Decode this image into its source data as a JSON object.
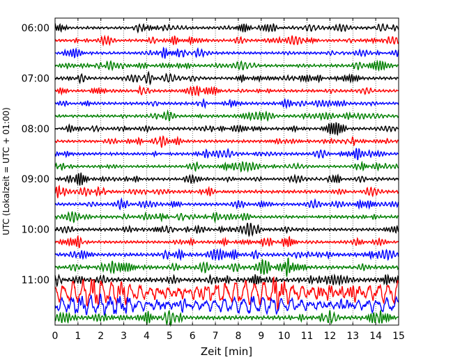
{
  "chart_data": {
    "type": "line",
    "title": "",
    "xlabel": "Zeit  [min]",
    "ylabel": "UTC (Lokalzeit = UTC + 01:00)",
    "xlim": [
      0,
      15
    ],
    "x_ticks": [
      "0",
      "1",
      "2",
      "3",
      "4",
      "5",
      "6",
      "7",
      "8",
      "9",
      "10",
      "11",
      "12",
      "13",
      "14",
      "15"
    ],
    "y_tick_labels": [
      "06:00",
      "07:00",
      "08:00",
      "09:00",
      "10:00",
      "11:00"
    ],
    "grid": "vertical dotted lines at each minute",
    "trace_interval_min": 15,
    "trace_colors": [
      "#000000",
      "#ff0000",
      "#0000ff",
      "#008000"
    ],
    "traces": [
      {
        "start": "06:00",
        "amplitude": 1.0
      },
      {
        "start": "06:15",
        "amplitude": 1.0
      },
      {
        "start": "06:30",
        "amplitude": 0.9
      },
      {
        "start": "06:45",
        "amplitude": 1.0
      },
      {
        "start": "07:00",
        "amplitude": 1.0
      },
      {
        "start": "07:15",
        "amplitude": 1.0
      },
      {
        "start": "07:30",
        "amplitude": 1.0
      },
      {
        "start": "07:45",
        "amplitude": 1.0
      },
      {
        "start": "08:00",
        "amplitude": 1.0
      },
      {
        "start": "08:15",
        "amplitude": 1.0
      },
      {
        "start": "08:30",
        "amplitude": 1.0
      },
      {
        "start": "08:45",
        "amplitude": 0.9
      },
      {
        "start": "09:00",
        "amplitude": 1.0
      },
      {
        "start": "09:15",
        "amplitude": 1.1
      },
      {
        "start": "09:30",
        "amplitude": 1.0
      },
      {
        "start": "09:45",
        "amplitude": 1.1
      },
      {
        "start": "10:00",
        "amplitude": 1.1
      },
      {
        "start": "10:15",
        "amplitude": 1.0
      },
      {
        "start": "10:30",
        "amplitude": 1.2
      },
      {
        "start": "10:45",
        "amplitude": 1.3
      },
      {
        "start": "11:00",
        "amplitude": 1.5
      },
      {
        "start": "11:15",
        "amplitude": 4.5
      },
      {
        "start": "11:30",
        "amplitude": 3.2
      },
      {
        "start": "11:45",
        "amplitude": 1.4
      }
    ]
  }
}
